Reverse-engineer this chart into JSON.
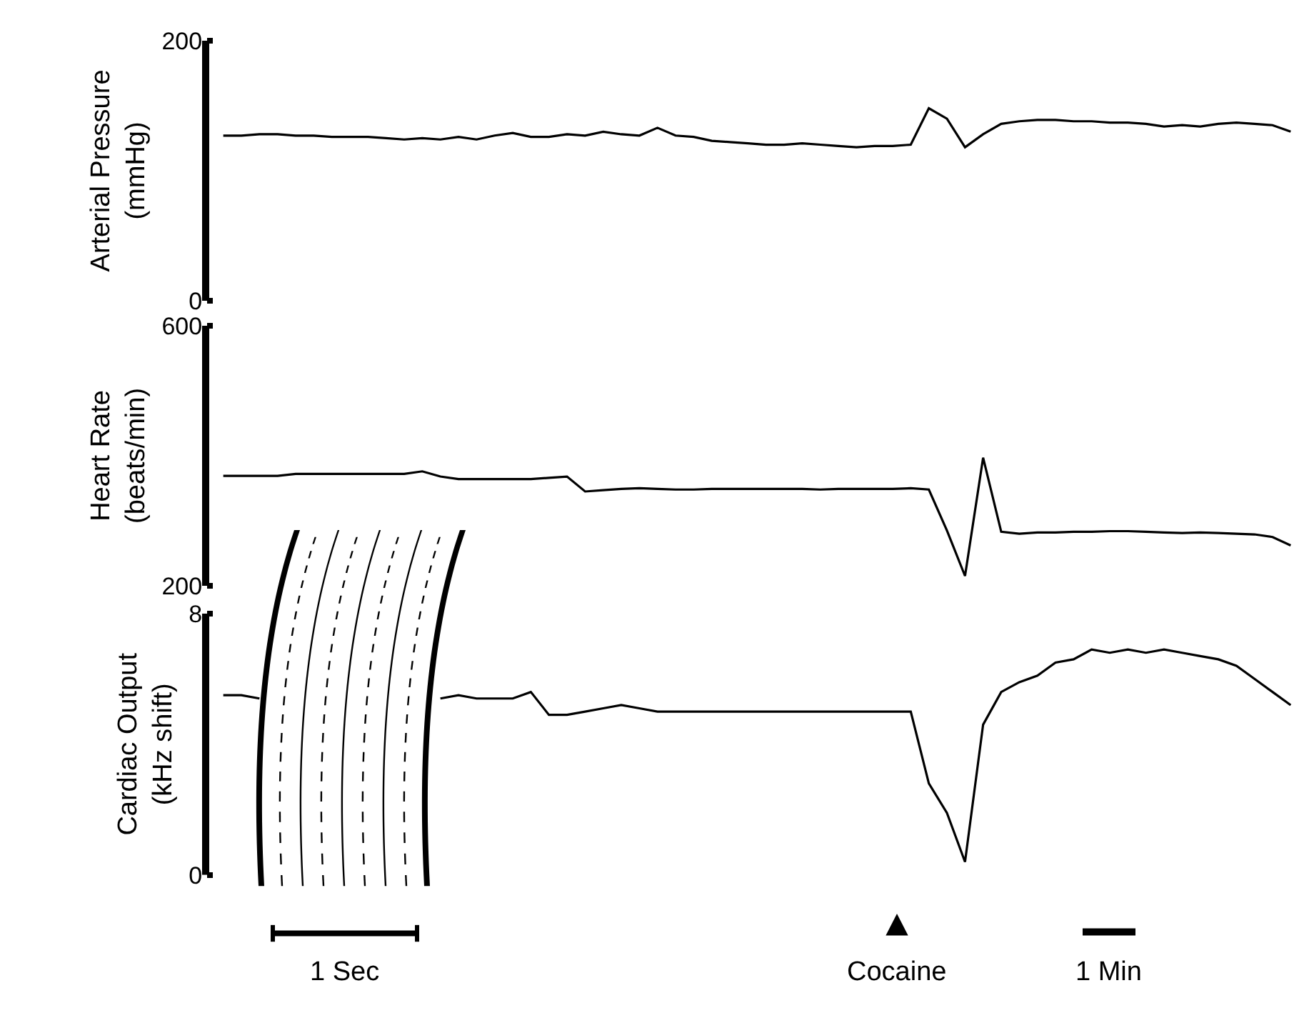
{
  "chart_data": [
    {
      "type": "line",
      "ylabel": "Arterial Pressure\n(mmHg)",
      "color": "#000000",
      "ylim": [
        0,
        200
      ],
      "yticks": [
        0,
        200
      ],
      "tick_labels": "y",
      "categories": [
        null,
        null,
        null,
        null,
        null,
        null,
        null,
        null,
        null,
        null,
        null,
        null,
        null,
        null,
        null,
        null,
        null,
        null,
        null,
        null,
        null,
        null,
        null,
        null,
        null,
        null,
        null,
        null,
        null,
        null,
        null,
        null,
        null,
        null,
        null,
        null,
        null,
        null,
        null,
        null,
        null,
        null,
        null,
        null,
        null,
        null,
        null,
        null,
        null,
        null,
        null,
        null,
        null,
        null,
        null,
        null,
        null,
        null,
        null,
        null
      ],
      "values": [
        127,
        127,
        128,
        128,
        127,
        127,
        126,
        126,
        126,
        125,
        124,
        125,
        124,
        126,
        124,
        127,
        129,
        126,
        126,
        128,
        127,
        130,
        128,
        127,
        133,
        127,
        126,
        123,
        122,
        121,
        120,
        120,
        121,
        120,
        119,
        118,
        119,
        119,
        120,
        148,
        140,
        118,
        128,
        136,
        138,
        139,
        139,
        138,
        138,
        137,
        137,
        136,
        134,
        135,
        134,
        136,
        137,
        136,
        135,
        130
      ]
    },
    {
      "type": "line",
      "ylabel": "Heart Rate\n(beats/min)",
      "color": "#000000",
      "ylim": [
        200,
        600
      ],
      "yticks": [
        200,
        600
      ],
      "tick_labels": "y",
      "categories": [
        null,
        null,
        null,
        null,
        null,
        null,
        null,
        null,
        null,
        null,
        null,
        null,
        null,
        null,
        null,
        null,
        null,
        null,
        null,
        null,
        null,
        null,
        null,
        null,
        null,
        null,
        null,
        null,
        null,
        null,
        null,
        null,
        null,
        null,
        null,
        null,
        null,
        null,
        null,
        null,
        null,
        null,
        null,
        null,
        null,
        null,
        null,
        null,
        null,
        null,
        null,
        null,
        null,
        null,
        null,
        null,
        null,
        null,
        null,
        null
      ],
      "values": [
        369,
        369,
        369,
        369,
        372,
        372,
        372,
        372,
        372,
        372,
        372,
        376,
        368,
        364,
        364,
        364,
        364,
        364,
        366,
        368,
        345,
        347,
        349,
        350,
        349,
        348,
        348,
        349,
        349,
        349,
        349,
        349,
        349,
        348,
        349,
        349,
        349,
        349,
        350,
        348,
        285,
        215,
        397,
        283,
        280,
        282,
        282,
        283,
        283,
        284,
        284,
        283,
        282,
        281,
        282,
        281,
        280,
        279,
        275,
        262
      ]
    },
    {
      "type": "line",
      "ylabel": "Cardiac Output\n(kHz shift)",
      "color": "#000000",
      "ylim": [
        0,
        8
      ],
      "yticks": [
        0,
        8
      ],
      "tick_labels": "y",
      "categories": [
        null,
        null,
        null,
        null,
        null,
        null,
        null,
        null,
        null,
        null,
        null,
        null,
        null,
        null,
        null,
        null,
        null,
        null,
        null,
        null,
        null,
        null,
        null,
        null,
        null,
        null,
        null,
        null,
        null,
        null,
        null,
        null,
        null,
        null,
        null,
        null,
        null,
        null,
        null,
        null,
        null,
        null,
        null,
        null,
        null,
        null,
        null,
        null,
        null,
        null,
        null,
        null,
        null,
        null,
        null,
        null,
        null,
        null,
        null,
        null
      ],
      "values": [
        5.5,
        5.5,
        5.4,
        null,
        null,
        null,
        null,
        null,
        null,
        null,
        null,
        null,
        5.4,
        5.5,
        5.4,
        5.4,
        5.4,
        5.6,
        4.9,
        4.9,
        5.0,
        5.1,
        5.2,
        5.1,
        5.0,
        5.0,
        5.0,
        5.0,
        5.0,
        5.0,
        5.0,
        5.0,
        5.0,
        5.0,
        5.0,
        5.0,
        5.0,
        5.0,
        5.0,
        2.8,
        1.9,
        0.4,
        4.6,
        5.6,
        5.9,
        6.1,
        6.5,
        6.6,
        6.9,
        6.8,
        6.9,
        6.8,
        6.9,
        6.8,
        6.7,
        6.6,
        6.4,
        6.0,
        5.6,
        5.2
      ],
      "annotations": [
        "1 Sec",
        "Cocaine",
        "1 Min"
      ]
    }
  ]
}
